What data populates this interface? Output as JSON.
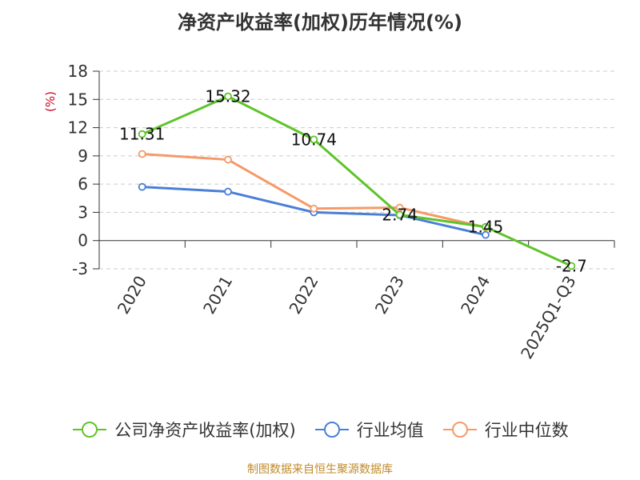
{
  "title": "净资产收益率(加权)历年情况(%)",
  "source_note": "制图数据来自恒生聚源数据库",
  "colors": {
    "series_0": "#5ec42a",
    "series_1": "#4a7fd8",
    "series_2": "#f59a68",
    "axis": "#333333",
    "grid": "#cccccc",
    "unit": "#d0021b"
  },
  "chart_data": {
    "type": "line",
    "title": "净资产收益率(加权)历年情况(%)",
    "ylabel": "(%)",
    "xlabel": "",
    "categories": [
      "2020",
      "2021",
      "2022",
      "2023",
      "2024",
      "2025Q1-Q3"
    ],
    "ylim": [
      -3,
      18
    ],
    "yticks": [
      -3,
      0,
      3,
      6,
      9,
      12,
      15,
      18
    ],
    "grid": true,
    "legend_position": "bottom",
    "series": [
      {
        "name": "公司净资产收益率(加权)",
        "values": [
          11.31,
          15.32,
          10.74,
          2.74,
          1.45,
          -2.7
        ],
        "labels": [
          "11.31",
          "15.32",
          "10.74",
          "2.74",
          "1.45",
          "-2.7"
        ]
      },
      {
        "name": "行业均值",
        "values": [
          5.7,
          5.2,
          3.0,
          2.7,
          0.6,
          null
        ]
      },
      {
        "name": "行业中位数",
        "values": [
          9.2,
          8.6,
          3.4,
          3.5,
          1.4,
          null
        ]
      }
    ]
  }
}
